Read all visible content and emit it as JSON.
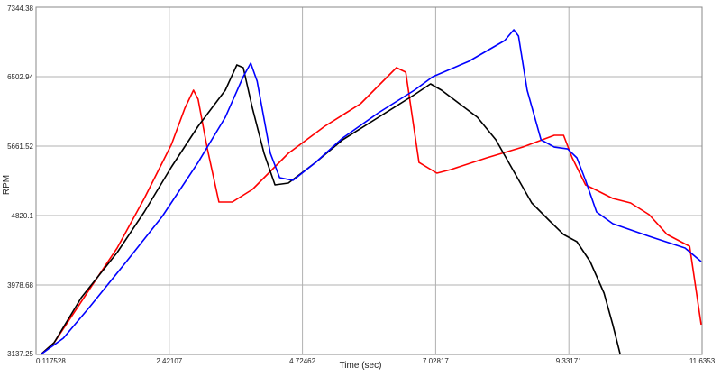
{
  "chart_data": {
    "type": "line",
    "x_label": "Time (sec)",
    "y_label": "RPM",
    "grid": true,
    "xlim": [
      0.117528,
      11.6353
    ],
    "xticks": [
      0.117528,
      2.42107,
      4.72462,
      7.02817,
      9.33171,
      11.6353
    ],
    "ylim": [
      3137.25,
      7344.38
    ],
    "yticks": [
      3137.25,
      3978.68,
      4820.1,
      5661.52,
      6502.94,
      7344.38
    ],
    "series": [
      {
        "color": "#ff0000",
        "x": [
          0.2,
          0.43,
          0.74,
          1.05,
          1.52,
          1.99,
          2.46,
          2.69,
          2.84,
          2.92,
          3.08,
          3.28,
          3.51,
          3.86,
          4.48,
          5.11,
          5.73,
          6.35,
          6.51,
          6.74,
          7.05,
          7.29,
          7.91,
          8.53,
          9.08,
          9.24,
          9.39,
          9.62,
          9.78,
          10.09,
          10.4,
          10.72,
          11.03,
          11.42,
          11.62
        ],
        "values": [
          3137,
          3279,
          3607,
          3935,
          4427,
          5028,
          5683,
          6120,
          6339,
          6230,
          5628,
          4984,
          4984,
          5137,
          5574,
          5902,
          6175,
          6612,
          6558,
          5464,
          5334,
          5377,
          5519,
          5650,
          5793,
          5793,
          5519,
          5192,
          5137,
          5028,
          4973,
          4831,
          4591,
          4448,
          3498
        ]
      },
      {
        "color": "#000000",
        "x": [
          0.2,
          0.43,
          0.9,
          1.52,
          1.99,
          2.46,
          2.92,
          3.39,
          3.59,
          3.7,
          3.86,
          4.06,
          4.25,
          4.48,
          4.95,
          5.42,
          6.04,
          6.66,
          6.94,
          7.13,
          7.44,
          7.75,
          8.07,
          8.38,
          8.69,
          9.0,
          9.24,
          9.47,
          9.7,
          9.94,
          10.09,
          10.22
        ],
        "values": [
          3137,
          3279,
          3826,
          4372,
          4864,
          5410,
          5902,
          6339,
          6645,
          6612,
          6120,
          5574,
          5192,
          5213,
          5464,
          5738,
          6011,
          6284,
          6416,
          6339,
          6175,
          6011,
          5738,
          5355,
          4973,
          4755,
          4591,
          4503,
          4263,
          3880,
          3498,
          3137
        ]
      },
      {
        "color": "#0000ff",
        "x": [
          0.2,
          0.59,
          1.05,
          1.68,
          2.3,
          2.92,
          3.39,
          3.7,
          3.83,
          3.94,
          4.17,
          4.33,
          4.56,
          4.95,
          5.42,
          6.04,
          6.66,
          6.98,
          7.6,
          8.22,
          8.38,
          8.46,
          8.61,
          8.85,
          9.08,
          9.31,
          9.47,
          9.62,
          9.81,
          10.09,
          10.72,
          11.34,
          11.62
        ],
        "values": [
          3137,
          3334,
          3716,
          4263,
          4809,
          5464,
          6011,
          6503,
          6667,
          6448,
          5574,
          5279,
          5246,
          5464,
          5760,
          6066,
          6339,
          6503,
          6689,
          6940,
          7071,
          6995,
          6339,
          5738,
          5650,
          5628,
          5519,
          5246,
          4864,
          4722,
          4569,
          4427,
          4263
        ]
      }
    ]
  }
}
